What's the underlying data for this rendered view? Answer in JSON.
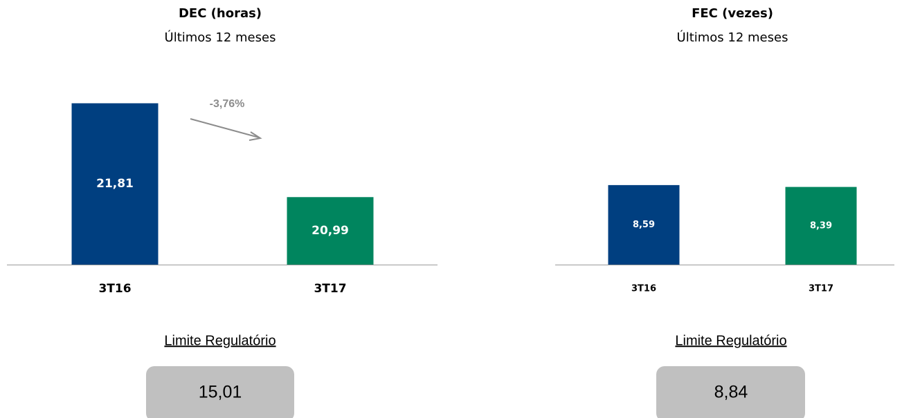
{
  "chart_data": [
    {
      "type": "bar",
      "title": "DEC (horas)",
      "subtitle": "Últimos 12 meses",
      "categories": [
        "3T16",
        "3T17"
      ],
      "values": [
        21.81,
        20.99
      ],
      "value_labels": [
        "21,81",
        "20,99"
      ],
      "colors": [
        "#003f80",
        "#00855e"
      ],
      "ylim": [
        20.4,
        22
      ],
      "annotation": "-3,76%",
      "limit": {
        "label": "Limite Regulatório",
        "value": "15,01"
      }
    },
    {
      "type": "bar",
      "title": "FEC (vezes)",
      "subtitle": "Últimos 12 meses",
      "categories": [
        "3T16",
        "3T17"
      ],
      "values": [
        8.59,
        8.39
      ],
      "value_labels": [
        "8,59",
        "8,39"
      ],
      "colors": [
        "#003f80",
        "#00855e"
      ],
      "ylim": [
        0,
        10
      ],
      "limit": {
        "label": "Limite Regulatório",
        "value": "8,84"
      }
    }
  ]
}
